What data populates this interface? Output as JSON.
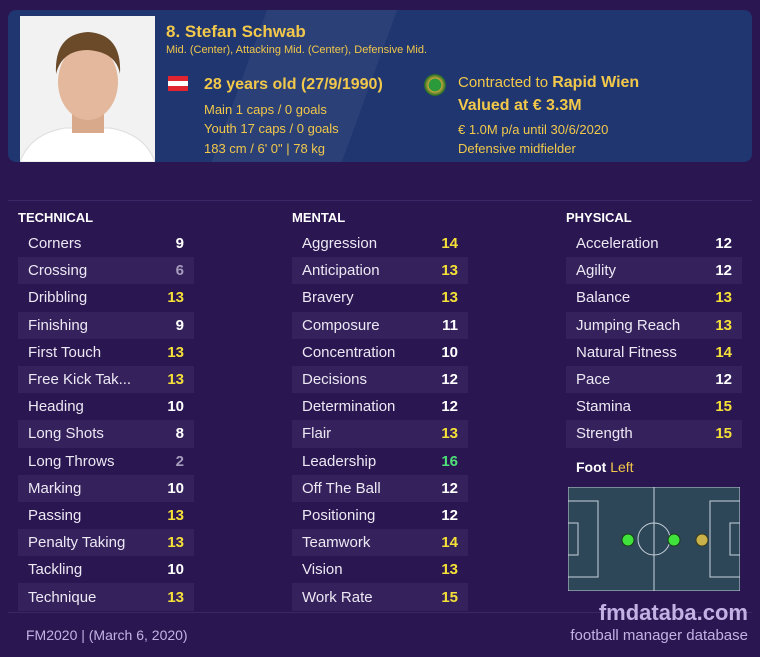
{
  "player": {
    "name": "8. Stefan Schwab",
    "positions": "Mid. (Center), Attacking Mid. (Center), Defensive Mid.",
    "age": "28 years old (27/9/1990)",
    "main_caps": "Main 1 caps / 0 goals",
    "youth_caps": "Youth 17 caps / 0 goals",
    "size": "183 cm / 6' 0\" | 78 kg",
    "contract_prefix": "Contracted to ",
    "club": "Rapid Wien",
    "value": "Valued at € 3.3M",
    "wage": "€ 1.0M p/a until 30/6/2020",
    "role": "Defensive midfielder",
    "foot_label": "Foot",
    "foot": "Left"
  },
  "colors": {
    "high": "#f5e038",
    "elite": "#4fe07a",
    "normal": "#ffffff",
    "low": "#a69cbc"
  },
  "technical": {
    "title": "TECHNICAL",
    "items": [
      [
        "Corners",
        9
      ],
      [
        "Crossing",
        6
      ],
      [
        "Dribbling",
        13
      ],
      [
        "Finishing",
        9
      ],
      [
        "First Touch",
        13
      ],
      [
        "Free Kick Tak...",
        13
      ],
      [
        "Heading",
        10
      ],
      [
        "Long Shots",
        8
      ],
      [
        "Long Throws",
        2
      ],
      [
        "Marking",
        10
      ],
      [
        "Passing",
        13
      ],
      [
        "Penalty Taking",
        13
      ],
      [
        "Tackling",
        10
      ],
      [
        "Technique",
        13
      ]
    ]
  },
  "mental": {
    "title": "MENTAL",
    "items": [
      [
        "Aggression",
        14
      ],
      [
        "Anticipation",
        13
      ],
      [
        "Bravery",
        13
      ],
      [
        "Composure",
        11
      ],
      [
        "Concentration",
        10
      ],
      [
        "Decisions",
        12
      ],
      [
        "Determination",
        12
      ],
      [
        "Flair",
        13
      ],
      [
        "Leadership",
        16
      ],
      [
        "Off The Ball",
        12
      ],
      [
        "Positioning",
        12
      ],
      [
        "Teamwork",
        14
      ],
      [
        "Vision",
        13
      ],
      [
        "Work Rate",
        15
      ]
    ]
  },
  "physical": {
    "title": "PHYSICAL",
    "items": [
      [
        "Acceleration",
        12
      ],
      [
        "Agility",
        12
      ],
      [
        "Balance",
        13
      ],
      [
        "Jumping Reach",
        13
      ],
      [
        "Natural Fitness",
        14
      ],
      [
        "Pace",
        12
      ],
      [
        "Stamina",
        15
      ],
      [
        "Strength",
        15
      ]
    ]
  },
  "footer": {
    "version": "FM2020 | (March 6, 2020)",
    "brand": "fmdataba.com",
    "brand_sub": "football manager database"
  }
}
